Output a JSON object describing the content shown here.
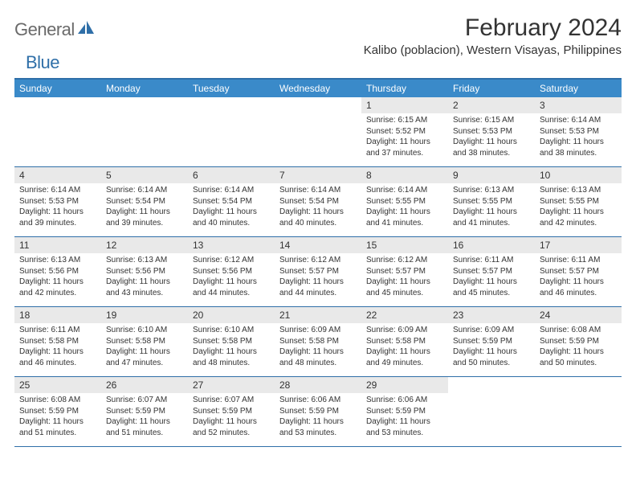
{
  "logo": {
    "general": "General",
    "blue": "Blue",
    "icon_color": "#2f6fa8"
  },
  "title": "February 2024",
  "location": "Kalibo (poblacion), Western Visayas, Philippines",
  "theme": {
    "header_bg": "#3a8ac9",
    "border": "#2f6fa8",
    "daynum_bg": "#e9e9e9"
  },
  "weekdays": [
    "Sunday",
    "Monday",
    "Tuesday",
    "Wednesday",
    "Thursday",
    "Friday",
    "Saturday"
  ],
  "weeks": [
    [
      {
        "n": "",
        "sr": "",
        "ss": "",
        "dl": ""
      },
      {
        "n": "",
        "sr": "",
        "ss": "",
        "dl": ""
      },
      {
        "n": "",
        "sr": "",
        "ss": "",
        "dl": ""
      },
      {
        "n": "",
        "sr": "",
        "ss": "",
        "dl": ""
      },
      {
        "n": "1",
        "sr": "Sunrise: 6:15 AM",
        "ss": "Sunset: 5:52 PM",
        "dl": "Daylight: 11 hours and 37 minutes."
      },
      {
        "n": "2",
        "sr": "Sunrise: 6:15 AM",
        "ss": "Sunset: 5:53 PM",
        "dl": "Daylight: 11 hours and 38 minutes."
      },
      {
        "n": "3",
        "sr": "Sunrise: 6:14 AM",
        "ss": "Sunset: 5:53 PM",
        "dl": "Daylight: 11 hours and 38 minutes."
      }
    ],
    [
      {
        "n": "4",
        "sr": "Sunrise: 6:14 AM",
        "ss": "Sunset: 5:53 PM",
        "dl": "Daylight: 11 hours and 39 minutes."
      },
      {
        "n": "5",
        "sr": "Sunrise: 6:14 AM",
        "ss": "Sunset: 5:54 PM",
        "dl": "Daylight: 11 hours and 39 minutes."
      },
      {
        "n": "6",
        "sr": "Sunrise: 6:14 AM",
        "ss": "Sunset: 5:54 PM",
        "dl": "Daylight: 11 hours and 40 minutes."
      },
      {
        "n": "7",
        "sr": "Sunrise: 6:14 AM",
        "ss": "Sunset: 5:54 PM",
        "dl": "Daylight: 11 hours and 40 minutes."
      },
      {
        "n": "8",
        "sr": "Sunrise: 6:14 AM",
        "ss": "Sunset: 5:55 PM",
        "dl": "Daylight: 11 hours and 41 minutes."
      },
      {
        "n": "9",
        "sr": "Sunrise: 6:13 AM",
        "ss": "Sunset: 5:55 PM",
        "dl": "Daylight: 11 hours and 41 minutes."
      },
      {
        "n": "10",
        "sr": "Sunrise: 6:13 AM",
        "ss": "Sunset: 5:55 PM",
        "dl": "Daylight: 11 hours and 42 minutes."
      }
    ],
    [
      {
        "n": "11",
        "sr": "Sunrise: 6:13 AM",
        "ss": "Sunset: 5:56 PM",
        "dl": "Daylight: 11 hours and 42 minutes."
      },
      {
        "n": "12",
        "sr": "Sunrise: 6:13 AM",
        "ss": "Sunset: 5:56 PM",
        "dl": "Daylight: 11 hours and 43 minutes."
      },
      {
        "n": "13",
        "sr": "Sunrise: 6:12 AM",
        "ss": "Sunset: 5:56 PM",
        "dl": "Daylight: 11 hours and 44 minutes."
      },
      {
        "n": "14",
        "sr": "Sunrise: 6:12 AM",
        "ss": "Sunset: 5:57 PM",
        "dl": "Daylight: 11 hours and 44 minutes."
      },
      {
        "n": "15",
        "sr": "Sunrise: 6:12 AM",
        "ss": "Sunset: 5:57 PM",
        "dl": "Daylight: 11 hours and 45 minutes."
      },
      {
        "n": "16",
        "sr": "Sunrise: 6:11 AM",
        "ss": "Sunset: 5:57 PM",
        "dl": "Daylight: 11 hours and 45 minutes."
      },
      {
        "n": "17",
        "sr": "Sunrise: 6:11 AM",
        "ss": "Sunset: 5:57 PM",
        "dl": "Daylight: 11 hours and 46 minutes."
      }
    ],
    [
      {
        "n": "18",
        "sr": "Sunrise: 6:11 AM",
        "ss": "Sunset: 5:58 PM",
        "dl": "Daylight: 11 hours and 46 minutes."
      },
      {
        "n": "19",
        "sr": "Sunrise: 6:10 AM",
        "ss": "Sunset: 5:58 PM",
        "dl": "Daylight: 11 hours and 47 minutes."
      },
      {
        "n": "20",
        "sr": "Sunrise: 6:10 AM",
        "ss": "Sunset: 5:58 PM",
        "dl": "Daylight: 11 hours and 48 minutes."
      },
      {
        "n": "21",
        "sr": "Sunrise: 6:09 AM",
        "ss": "Sunset: 5:58 PM",
        "dl": "Daylight: 11 hours and 48 minutes."
      },
      {
        "n": "22",
        "sr": "Sunrise: 6:09 AM",
        "ss": "Sunset: 5:58 PM",
        "dl": "Daylight: 11 hours and 49 minutes."
      },
      {
        "n": "23",
        "sr": "Sunrise: 6:09 AM",
        "ss": "Sunset: 5:59 PM",
        "dl": "Daylight: 11 hours and 50 minutes."
      },
      {
        "n": "24",
        "sr": "Sunrise: 6:08 AM",
        "ss": "Sunset: 5:59 PM",
        "dl": "Daylight: 11 hours and 50 minutes."
      }
    ],
    [
      {
        "n": "25",
        "sr": "Sunrise: 6:08 AM",
        "ss": "Sunset: 5:59 PM",
        "dl": "Daylight: 11 hours and 51 minutes."
      },
      {
        "n": "26",
        "sr": "Sunrise: 6:07 AM",
        "ss": "Sunset: 5:59 PM",
        "dl": "Daylight: 11 hours and 51 minutes."
      },
      {
        "n": "27",
        "sr": "Sunrise: 6:07 AM",
        "ss": "Sunset: 5:59 PM",
        "dl": "Daylight: 11 hours and 52 minutes."
      },
      {
        "n": "28",
        "sr": "Sunrise: 6:06 AM",
        "ss": "Sunset: 5:59 PM",
        "dl": "Daylight: 11 hours and 53 minutes."
      },
      {
        "n": "29",
        "sr": "Sunrise: 6:06 AM",
        "ss": "Sunset: 5:59 PM",
        "dl": "Daylight: 11 hours and 53 minutes."
      },
      {
        "n": "",
        "sr": "",
        "ss": "",
        "dl": ""
      },
      {
        "n": "",
        "sr": "",
        "ss": "",
        "dl": ""
      }
    ]
  ]
}
